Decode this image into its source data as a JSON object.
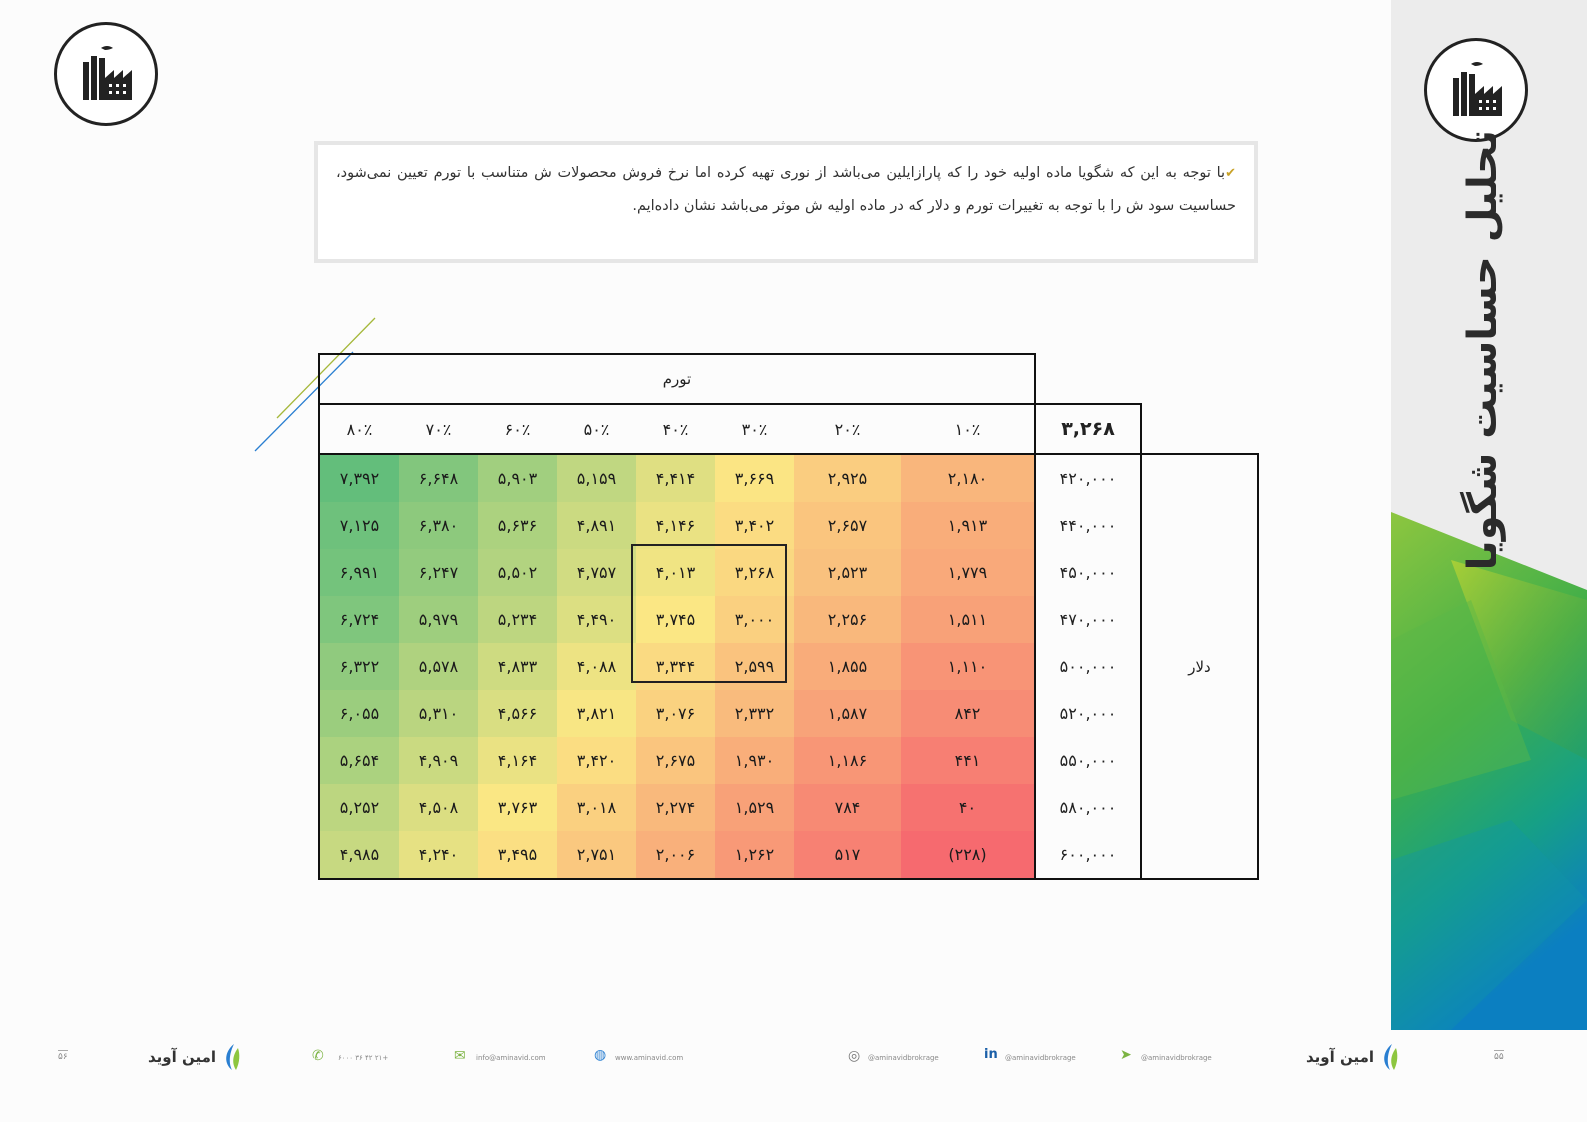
{
  "side_title": "تحلیل حساسیت شگویا",
  "note": {
    "text": "با توجه به این که شگویا ماده اولیه خود را که پارازایلین می‌باشد از نوری تهیه کرده اما نرخ فروش محصولات ش متناسب با تورم تعیین نمی‌شود، حساسیت سود ش را با توجه به تغییرات تورم و دلار که در ماده اولیه ش موثر می‌باشد نشان داده‌ایم."
  },
  "table": {
    "inflation_label": "تورم",
    "dollar_label": "دلار",
    "corner_value": "۳,۲۶۸",
    "columns": [
      "۱۰٪",
      "۲۰٪",
      "۳۰٪",
      "۴۰٪",
      "۵۰٪",
      "۶۰٪",
      "۷۰٪",
      "۸۰٪"
    ],
    "rows": [
      {
        "dollar": "۴۲۰,۰۰۰",
        "values": [
          "۲,۱۸۰",
          "۲,۹۲۵",
          "۳,۶۶۹",
          "۴,۴۱۴",
          "۵,۱۵۹",
          "۵,۹۰۳",
          "۶,۶۴۸",
          "۷,۳۹۲"
        ]
      },
      {
        "dollar": "۴۴۰,۰۰۰",
        "values": [
          "۱,۹۱۳",
          "۲,۶۵۷",
          "۳,۴۰۲",
          "۴,۱۴۶",
          "۴,۸۹۱",
          "۵,۶۳۶",
          "۶,۳۸۰",
          "۷,۱۲۵"
        ]
      },
      {
        "dollar": "۴۵۰,۰۰۰",
        "values": [
          "۱,۷۷۹",
          "۲,۵۲۳",
          "۳,۲۶۸",
          "۴,۰۱۳",
          "۴,۷۵۷",
          "۵,۵۰۲",
          "۶,۲۴۷",
          "۶,۹۹۱"
        ]
      },
      {
        "dollar": "۴۷۰,۰۰۰",
        "values": [
          "۱,۵۱۱",
          "۲,۲۵۶",
          "۳,۰۰۰",
          "۳,۷۴۵",
          "۴,۴۹۰",
          "۵,۲۳۴",
          "۵,۹۷۹",
          "۶,۷۲۴"
        ]
      },
      {
        "dollar": "۵۰۰,۰۰۰",
        "values": [
          "۱,۱۱۰",
          "۱,۸۵۵",
          "۲,۵۹۹",
          "۳,۳۴۴",
          "۴,۰۸۸",
          "۴,۸۳۳",
          "۵,۵۷۸",
          "۶,۳۲۲"
        ]
      },
      {
        "dollar": "۵۲۰,۰۰۰",
        "values": [
          "۸۴۲",
          "۱,۵۸۷",
          "۲,۳۳۲",
          "۳,۰۷۶",
          "۳,۸۲۱",
          "۴,۵۶۶",
          "۵,۳۱۰",
          "۶,۰۵۵"
        ]
      },
      {
        "dollar": "۵۵۰,۰۰۰",
        "values": [
          "۴۴۱",
          "۱,۱۸۶",
          "۱,۹۳۰",
          "۲,۶۷۵",
          "۳,۴۲۰",
          "۴,۱۶۴",
          "۴,۹۰۹",
          "۵,۶۵۴"
        ]
      },
      {
        "dollar": "۵۸۰,۰۰۰",
        "values": [
          "۴۰",
          "۷۸۴",
          "۱,۵۲۹",
          "۲,۲۷۴",
          "۳,۰۱۸",
          "۳,۷۶۳",
          "۴,۵۰۸",
          "۵,۲۵۲"
        ]
      },
      {
        "dollar": "۶۰۰,۰۰۰",
        "values": [
          "(۲۲۸)",
          "۵۱۷",
          "۱,۲۶۲",
          "۲,۰۰۶",
          "۲,۷۵۱",
          "۳,۴۹۵",
          "۴,۲۴۰",
          "۴,۹۸۵"
        ]
      }
    ],
    "colors": {
      "low": "#f66a6f",
      "mid": "#fbe784",
      "high": "#63be7b"
    }
  },
  "footer": {
    "brand": "امین آوید",
    "page_left": "۵۶",
    "page_right": "۵۵",
    "phone": "+۲۱ ۴۲ ۳۶ ۶۰۰۰",
    "email": "info@aminavid.com",
    "website": "www.aminavid.com",
    "instagram": "@aminavidbrokrage",
    "linkedin": "@aminavidbrokrage",
    "telegram": "@aminavidbrokrage"
  }
}
